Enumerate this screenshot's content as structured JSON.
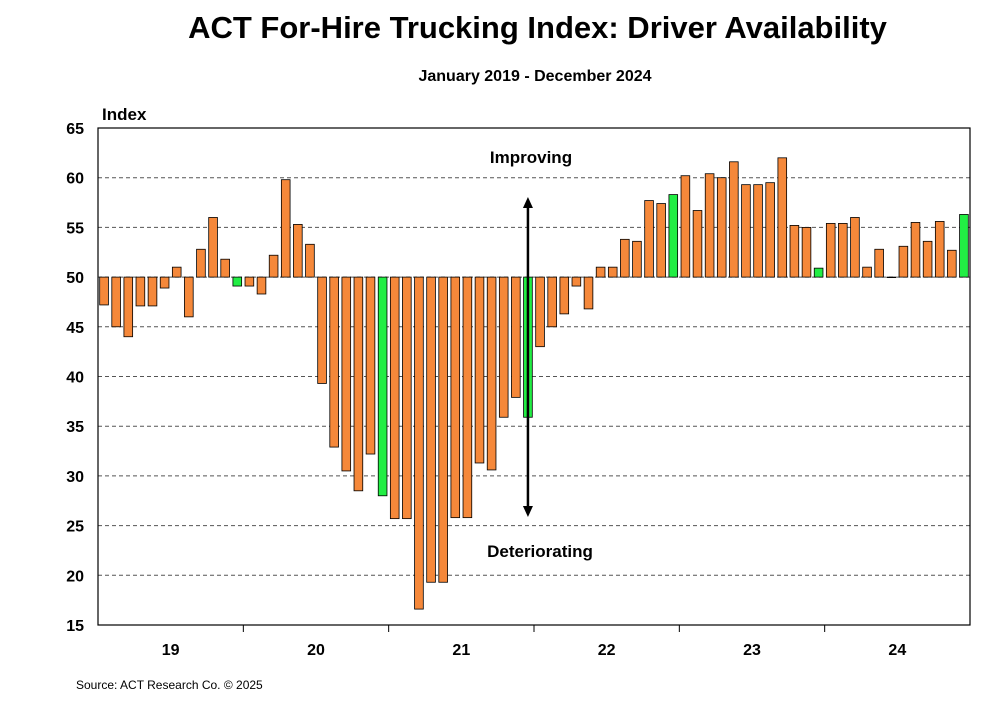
{
  "title": "ACT For-Hire Trucking Index: Driver Availability",
  "subtitle": "January 2019 - December 2024",
  "source": "Source: ACT Research Co. © 2025",
  "chart_data": {
    "type": "bar",
    "ylabel": "Index",
    "ylim": [
      15,
      65
    ],
    "ytick_step": 5,
    "baseline": 50,
    "grid": true,
    "year_labels": [
      "19",
      "20",
      "21",
      "22",
      "23",
      "24"
    ],
    "annotations": {
      "up": "Improving",
      "down": "Deteriorating"
    },
    "colors": {
      "bar": "#F5883A",
      "highlight": "#22EE44",
      "edge": "#000000",
      "grid": "#555555"
    },
    "values": [
      47.2,
      45.0,
      44.0,
      47.1,
      47.1,
      48.9,
      51.0,
      46.0,
      52.8,
      56.0,
      51.8,
      49.1,
      49.1,
      48.3,
      52.2,
      59.8,
      55.3,
      53.3,
      39.3,
      32.9,
      30.5,
      28.5,
      32.2,
      28.0,
      25.7,
      25.7,
      16.6,
      19.3,
      19.3,
      25.8,
      25.8,
      31.3,
      30.6,
      35.9,
      37.9,
      35.9,
      43.0,
      45.0,
      46.3,
      49.1,
      46.8,
      51.0,
      51.0,
      53.8,
      53.6,
      57.7,
      57.4,
      58.3,
      60.2,
      56.7,
      60.4,
      60.0,
      61.6,
      59.3,
      59.3,
      59.5,
      62.0,
      55.2,
      55.0,
      50.9,
      55.4,
      55.4,
      56.0,
      51.0,
      52.8,
      50.0,
      53.1,
      55.5,
      53.6,
      55.6,
      52.7,
      56.3
    ],
    "highlight_index": [
      11,
      23,
      35,
      47,
      59,
      71
    ],
    "arrow_index": 35.5
  }
}
